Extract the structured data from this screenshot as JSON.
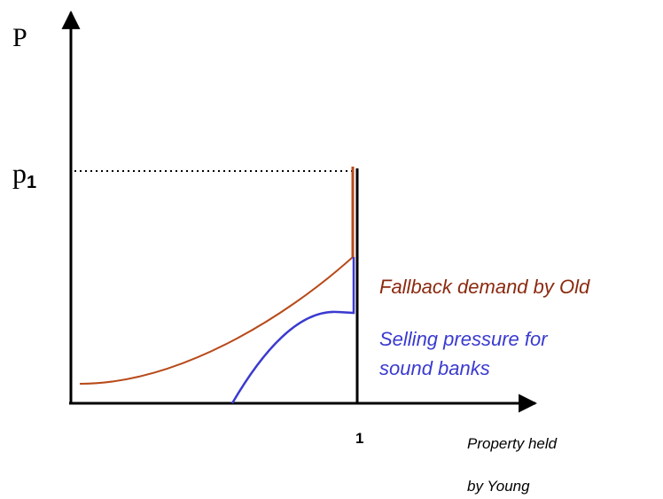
{
  "y_axis_label": "P",
  "price_level": {
    "base": "p",
    "subscript": "1"
  },
  "x_tick": "1",
  "x_axis_label": [
    "Property held",
    "by Young"
  ],
  "curves": [
    {
      "label": [
        "Fallback demand by Old"
      ]
    },
    {
      "label": [
        "Selling pressure for",
        "sound banks"
      ]
    }
  ]
}
